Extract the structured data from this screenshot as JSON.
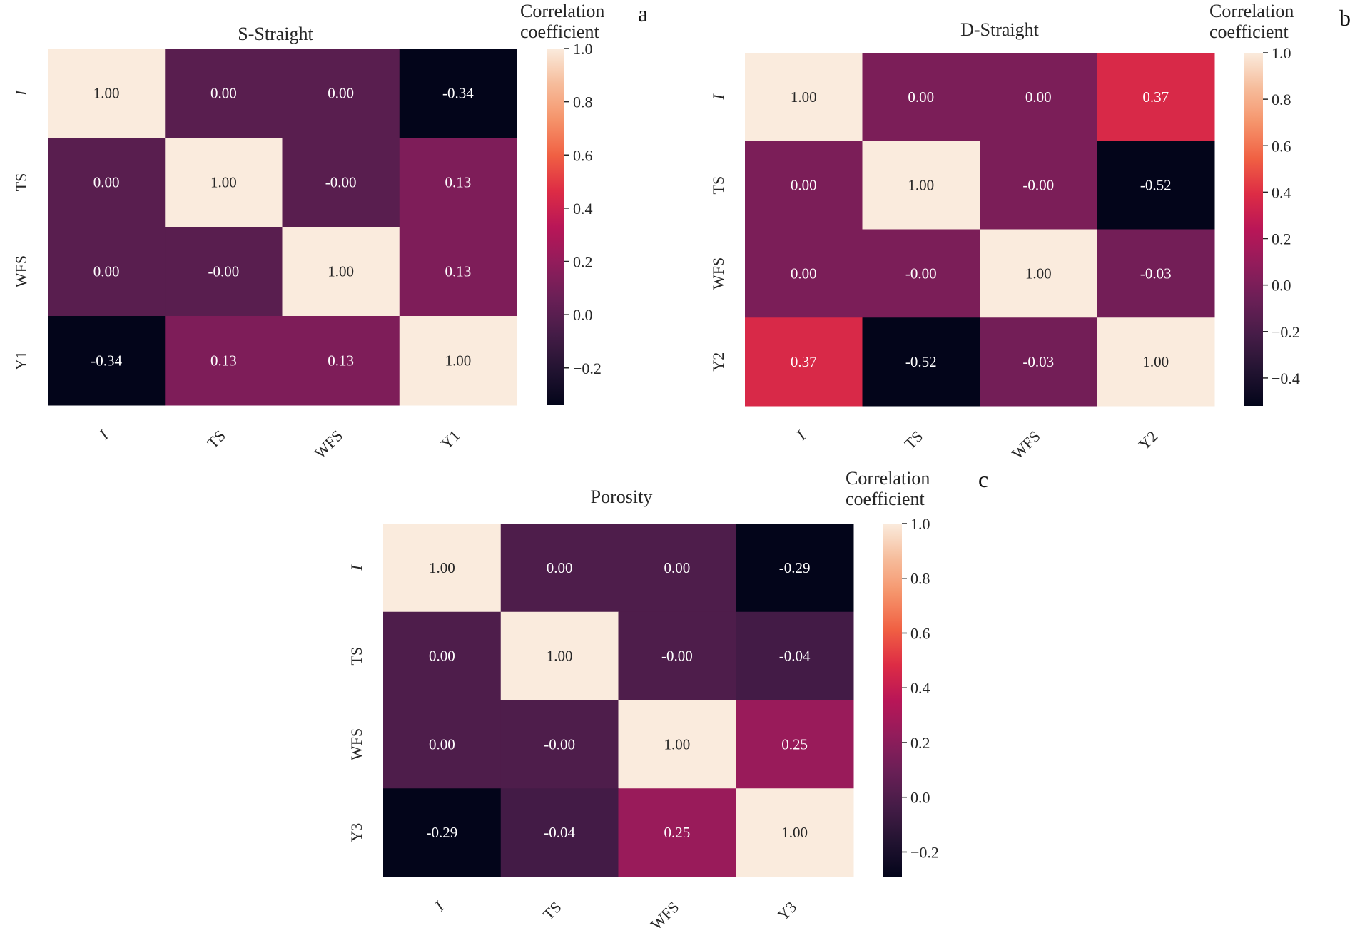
{
  "chart_data": [
    {
      "type": "heatmap",
      "panel_label": "a",
      "title": "S-Straight",
      "colorbar_label": [
        "Correlation",
        "coefficient"
      ],
      "colormap": "rocket",
      "row_labels": [
        "I",
        "TS",
        "WFS",
        "Y1"
      ],
      "col_labels": [
        "I",
        "TS",
        "WFS",
        "Y1"
      ],
      "values": [
        [
          1.0,
          0.0,
          0.0,
          -0.34
        ],
        [
          0.0,
          1.0,
          -0.0,
          0.13
        ],
        [
          0.0,
          -0.0,
          1.0,
          0.13
        ],
        [
          -0.34,
          0.13,
          0.13,
          1.0
        ]
      ],
      "annotations": [
        [
          "1.00",
          "0.00",
          "0.00",
          "-0.34"
        ],
        [
          "0.00",
          "1.00",
          "-0.00",
          "0.13"
        ],
        [
          "0.00",
          "-0.00",
          "1.00",
          "0.13"
        ],
        [
          "-0.34",
          "0.13",
          "0.13",
          "1.00"
        ]
      ],
      "vlim": [
        -0.34,
        1.0
      ],
      "colorbar_ticks": [
        1.0,
        0.8,
        0.6,
        0.4,
        0.2,
        0.0,
        -0.2
      ],
      "colorbar_tick_labels": [
        "1.0",
        "0.8",
        "0.6",
        "0.4",
        "0.2",
        "0.0",
        "−0.2"
      ]
    },
    {
      "type": "heatmap",
      "panel_label": "b",
      "title": "D-Straight",
      "colorbar_label": [
        "Correlation",
        "coefficient"
      ],
      "colormap": "rocket",
      "row_labels": [
        "I",
        "TS",
        "WFS",
        "Y2"
      ],
      "col_labels": [
        "I",
        "TS",
        "WFS",
        "Y2"
      ],
      "values": [
        [
          1.0,
          0.0,
          0.0,
          0.37
        ],
        [
          0.0,
          1.0,
          -0.0,
          -0.52
        ],
        [
          0.0,
          -0.0,
          1.0,
          -0.03
        ],
        [
          0.37,
          -0.52,
          -0.03,
          1.0
        ]
      ],
      "annotations": [
        [
          "1.00",
          "0.00",
          "0.00",
          "0.37"
        ],
        [
          "0.00",
          "1.00",
          "-0.00",
          "-0.52"
        ],
        [
          "0.00",
          "-0.00",
          "1.00",
          "-0.03"
        ],
        [
          "0.37",
          "-0.52",
          "-0.03",
          "1.00"
        ]
      ],
      "vlim": [
        -0.52,
        1.0
      ],
      "colorbar_ticks": [
        1.0,
        0.8,
        0.6,
        0.4,
        0.2,
        0.0,
        -0.2,
        -0.4
      ],
      "colorbar_tick_labels": [
        "1.0",
        "0.8",
        "0.6",
        "0.4",
        "0.2",
        "0.0",
        "−0.2",
        "−0.4"
      ]
    },
    {
      "type": "heatmap",
      "panel_label": "c",
      "title": "Porosity",
      "colorbar_label": [
        "Correlation",
        "coefficient"
      ],
      "colormap": "rocket",
      "row_labels": [
        "I",
        "TS",
        "WFS",
        "Y3"
      ],
      "col_labels": [
        "I",
        "TS",
        "WFS",
        "Y3"
      ],
      "values": [
        [
          1.0,
          0.0,
          0.0,
          -0.29
        ],
        [
          0.0,
          1.0,
          -0.0,
          -0.04
        ],
        [
          0.0,
          -0.0,
          1.0,
          0.25
        ],
        [
          -0.29,
          -0.04,
          0.25,
          1.0
        ]
      ],
      "annotations": [
        [
          "1.00",
          "0.00",
          "0.00",
          "-0.29"
        ],
        [
          "0.00",
          "1.00",
          "-0.00",
          "-0.04"
        ],
        [
          "0.00",
          "-0.00",
          "1.00",
          "0.25"
        ],
        [
          "-0.29",
          "-0.04",
          "0.25",
          "1.00"
        ]
      ],
      "vlim": [
        -0.29,
        1.0
      ],
      "colorbar_ticks": [
        1.0,
        0.8,
        0.6,
        0.4,
        0.2,
        0.0,
        -0.2
      ],
      "colorbar_tick_labels": [
        "1.0",
        "0.8",
        "0.6",
        "0.4",
        "0.2",
        "0.0",
        "−0.2"
      ]
    }
  ]
}
